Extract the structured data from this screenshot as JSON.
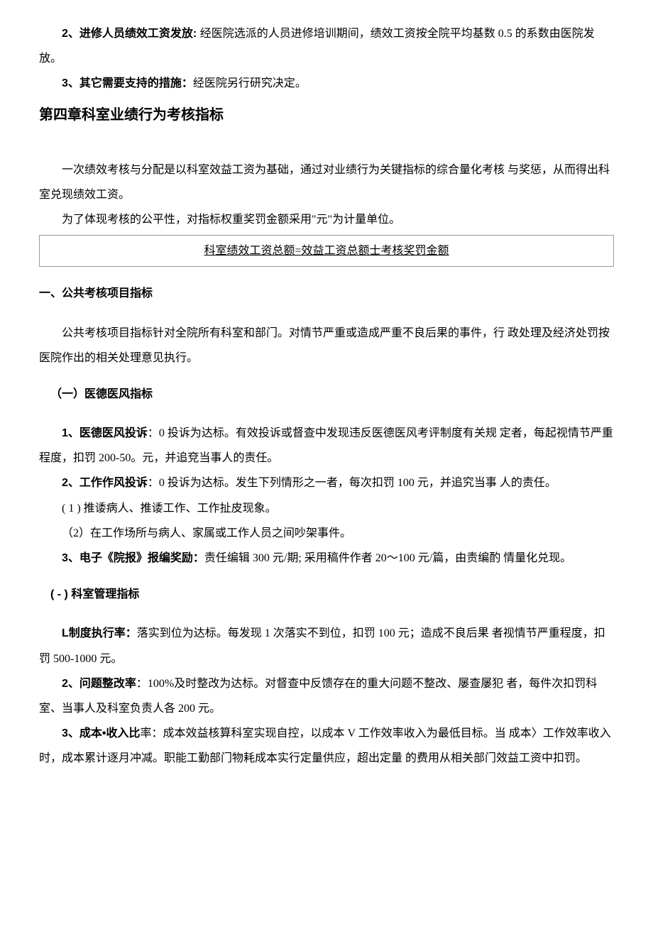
{
  "p1": {
    "prefix": "2、进修人员绩效工资发放: ",
    "text": "经医院选派的人员进修培训期间，绩效工资按全院平均基数 0.5 的系数由医院发放。"
  },
  "p2": {
    "prefix": "3、其它需要支持的措施：",
    "text": "经医院另行研究决定。"
  },
  "chapter": "第四章科室业绩行为考核指标",
  "p3": "一次绩效考核与分配是以科室效益工资为基础，通过对业绩行为关键指标的综合量化考核 与奖惩，从而得出科室兑现绩效工资。",
  "p4": "为了体现考核的公平性，对指标权重奖罚金额采用\"元\"为计量单位。",
  "formula": "科室绩效工资总额=效益工资总额士考核奖罚金额",
  "section1": "一、公共考核项目指标",
  "p5": "公共考核项目指标针对全院所有科室和部门。对情节严重或造成严重不良后果的事件，行 政处理及经济处罚按医院作出的相关处理意见执行。",
  "sub1": "（一）医德医风指标",
  "p6": {
    "prefix": "1、医德医风投诉",
    "text": "：0 投诉为达标。有效投诉或督查中发现违反医德医风考评制度有关规 定者，每起视情节严重程度，扣罚 200-50。元，并追兗当事人的责任。"
  },
  "p7": {
    "prefix": "2、工作作风投诉",
    "text": "：0 投诉为达标。发生下列情形之一者，每次扣罚 100 元，并追究当事 人的责任。"
  },
  "p8": "( 1 ) 推诿病人、推诿工作、工作扯皮现象。",
  "p9": "（2）在工作场所与病人、家属或工作人员之间吵架事件。",
  "p10": {
    "prefix": "3、电子《院报》报编奖励：",
    "text": "责任编辑 300 元/期; 采用稿件作者 20〜100 元/篇，由责编酌 情量化兑现。"
  },
  "sub2": "( - ) 科室管理指标",
  "p11": {
    "prefix": "L制度执行率：",
    "text": "落实到位为达标。每发现 1 次落实不到位，扣罚 100 元；造成不良后果 者视情节严重程度，扣罚 500-1000 元。"
  },
  "p12": {
    "prefix": "2、问题整改率",
    "text": "：100%及时整改为达标。对督查中反馈存在的重大问题不整改、屡查屡犯 者，每件次扣罚科室、当事人及科室负责人各 200 元。"
  },
  "p13": {
    "prefix": "3、成本•收入比",
    "text": "率：成本效益核算科室实现自控，以成本 V 工作效率收入为最低目标。当 成本〉工作效率收入时，成本累计逐月冲减。职能工勤部门物耗成本实行定量供应，超出定量 的费用从相关部门效益工资中扣罚。"
  }
}
